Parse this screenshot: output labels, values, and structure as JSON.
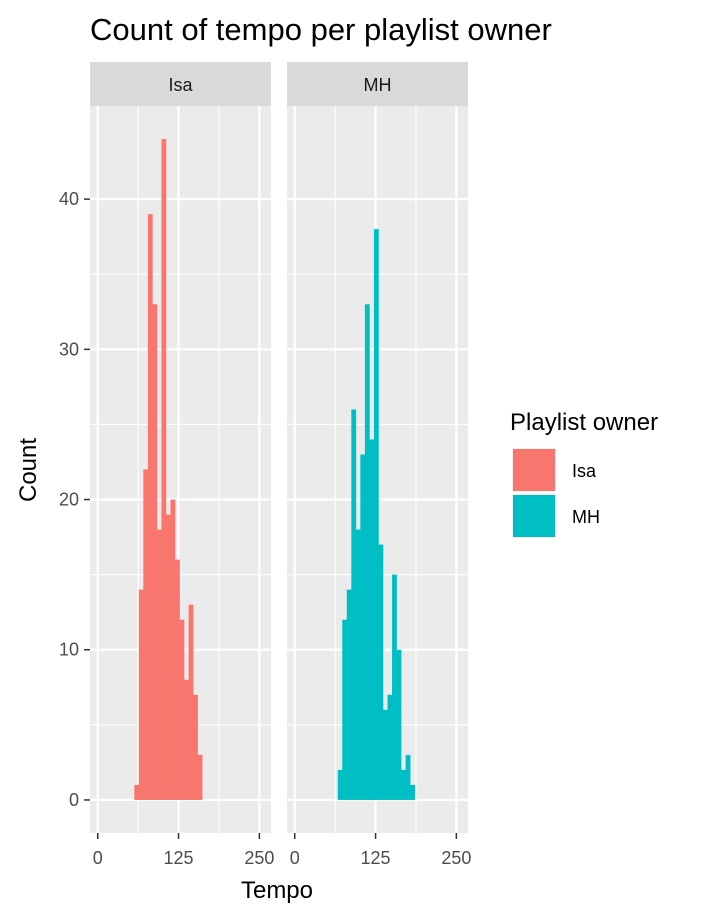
{
  "chart_data": {
    "type": "bar",
    "subtype": "faceted-histogram",
    "title": "Count of tempo per playlist owner",
    "xlabel": "Tempo",
    "ylabel": "Count",
    "xlim": [
      -12,
      268
    ],
    "ylim": [
      -2.2,
      46.2
    ],
    "x_ticks": [
      0,
      125,
      250
    ],
    "x_tick_labels": [
      "0",
      "125",
      "250"
    ],
    "y_ticks": [
      0,
      10,
      20,
      30,
      40
    ],
    "y_tick_labels": [
      "0",
      "10",
      "20",
      "30",
      "40"
    ],
    "bin_width": 7,
    "grid": true,
    "legend": {
      "title": "Playlist owner",
      "position": "right",
      "entries": [
        "Isa",
        "MH"
      ]
    },
    "colors": {
      "Isa": "#F8766D",
      "MH": "#00BFC4"
    },
    "series": [
      {
        "name": "Isa",
        "bins": [
          {
            "x": 60,
            "count": 1
          },
          {
            "x": 67,
            "count": 14
          },
          {
            "x": 74,
            "count": 22
          },
          {
            "x": 81,
            "count": 39
          },
          {
            "x": 88,
            "count": 33
          },
          {
            "x": 95,
            "count": 18
          },
          {
            "x": 102,
            "count": 44
          },
          {
            "x": 109,
            "count": 19
          },
          {
            "x": 116,
            "count": 20
          },
          {
            "x": 123,
            "count": 16
          },
          {
            "x": 130,
            "count": 12
          },
          {
            "x": 137,
            "count": 8
          },
          {
            "x": 144,
            "count": 13
          },
          {
            "x": 151,
            "count": 7
          },
          {
            "x": 158,
            "count": 3
          }
        ]
      },
      {
        "name": "MH",
        "bins": [
          {
            "x": 70,
            "count": 2
          },
          {
            "x": 77,
            "count": 12
          },
          {
            "x": 84,
            "count": 14
          },
          {
            "x": 91,
            "count": 26
          },
          {
            "x": 98,
            "count": 18
          },
          {
            "x": 105,
            "count": 23
          },
          {
            "x": 112,
            "count": 33
          },
          {
            "x": 119,
            "count": 24
          },
          {
            "x": 126,
            "count": 38
          },
          {
            "x": 133,
            "count": 17
          },
          {
            "x": 140,
            "count": 6
          },
          {
            "x": 147,
            "count": 7
          },
          {
            "x": 154,
            "count": 15
          },
          {
            "x": 161,
            "count": 10
          },
          {
            "x": 168,
            "count": 2
          },
          {
            "x": 175,
            "count": 3
          },
          {
            "x": 182,
            "count": 1
          }
        ]
      }
    ]
  }
}
